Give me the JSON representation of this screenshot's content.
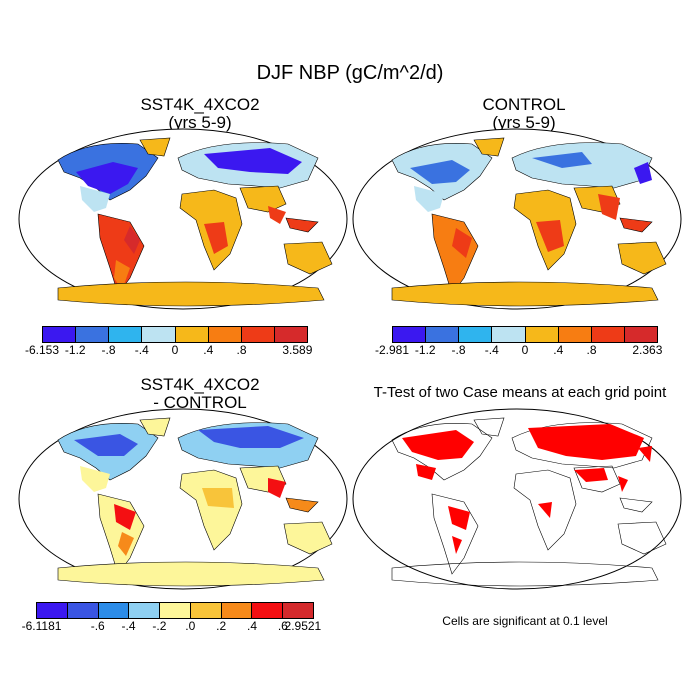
{
  "title": "DJF NBP (gC/m^2/d)",
  "panels": [
    {
      "title_line1": "SST4K_4XCO2",
      "title_line2": "(yrs 5-9)",
      "colorbar": {
        "colors": [
          "#3b18f0",
          "#3a72e0",
          "#2fb4ee",
          "#bde3f2",
          "#f6b81a",
          "#f77d12",
          "#ee3b17",
          "#d62a2b"
        ],
        "labels": [
          "-6.153",
          "-1.2",
          "-.8",
          "-.4",
          "0",
          ".4",
          ".8",
          "3.589"
        ]
      }
    },
    {
      "title_line1": "CONTROL",
      "title_line2": "(yrs 5-9)",
      "colorbar": {
        "colors": [
          "#3b18f0",
          "#3a72e0",
          "#2fb4ee",
          "#bde3f2",
          "#f6b81a",
          "#f77d12",
          "#ee3b17",
          "#d62a2b"
        ],
        "labels": [
          "-2.981",
          "-1.2",
          "-.8",
          "-.4",
          "0",
          ".4",
          ".8",
          "2.363"
        ]
      }
    },
    {
      "title_line1": "SST4K_4XCO2",
      "title_line2": "- CONTROL",
      "colorbar": {
        "colors": [
          "#3b18f0",
          "#3a55e3",
          "#2c8ce8",
          "#8fd0f2",
          "#fdf69a",
          "#f8c43a",
          "#f68a1a",
          "#f40f12",
          "#d42a2c"
        ],
        "labels": [
          "-6.1181",
          "-.6",
          "-.4",
          "-.2",
          ".0",
          ".2",
          ".4",
          ".6",
          "2.9521"
        ]
      }
    },
    {
      "title_line1": "T-Test of two Case means at each grid point",
      "title_line2": "",
      "note": "Cells are significant at 0.1 level",
      "significant_color": "#ff0000"
    }
  ]
}
